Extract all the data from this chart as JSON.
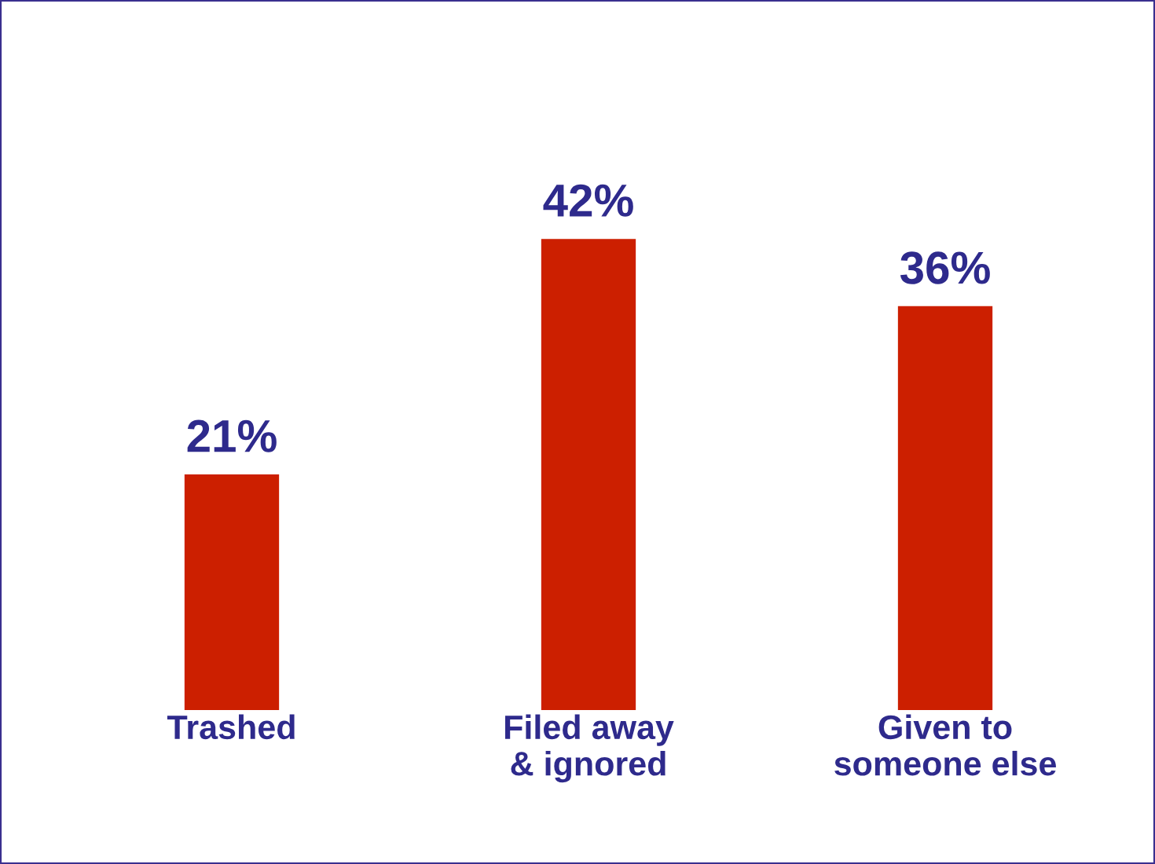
{
  "chart_data": {
    "type": "bar",
    "categories": [
      "Trashed",
      "Filed away\n& ignored",
      "Given to\nsomeone else"
    ],
    "values": [
      21,
      42,
      36
    ],
    "value_labels": [
      "21%",
      "42%",
      "36%"
    ],
    "color": "#cc1f00",
    "grid": false,
    "legend": false
  }
}
